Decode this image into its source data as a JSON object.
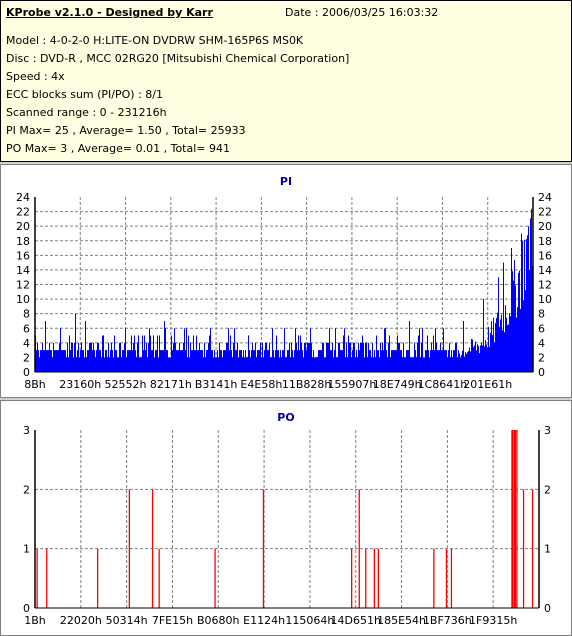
{
  "info": {
    "title": "KProbe v2.1.0 - Designed by Karr",
    "date": "Date : 2006/03/25 16:03:32",
    "model": "Model : 4-0-2-0 H:LITE-ON DVDRW SHM-165P6S MS0K",
    "disc": "Disc : DVD-R , MCC 02RG20   [Mitsubishi Chemical Corporation]",
    "speed": "Speed : 4x",
    "ecc": "ECC blocks sum (PI/PO) : 8/1",
    "range": "Scanned range : 0 - 231216h",
    "pi_stats": "PI Max= 25 , Average= 1.50 , Total= 25933",
    "po_stats": "PO Max= 3 , Average= 0.01 , Total= 941"
  },
  "chart_data": [
    {
      "type": "bar",
      "title": "PI",
      "ylim": [
        0,
        24
      ],
      "yticks": [
        0,
        2,
        4,
        6,
        8,
        10,
        12,
        14,
        16,
        18,
        20,
        22,
        24
      ],
      "xtick_labels": [
        "8Bh",
        "23160h",
        "52552h",
        "82171h",
        "B3141h",
        "E4E58h",
        "11B828h",
        "155907h",
        "18E749h",
        "1C8641h",
        "201E61h"
      ],
      "grid": true,
      "color": "#0000ff",
      "baseline_range": [
        2,
        4
      ],
      "profile": [
        [
          0,
          3
        ],
        [
          0.85,
          3
        ],
        [
          0.89,
          4
        ],
        [
          0.92,
          6
        ],
        [
          0.95,
          10
        ],
        [
          0.97,
          14
        ],
        [
          0.985,
          18
        ],
        [
          1.0,
          24
        ]
      ],
      "spikes": [
        [
          0.02,
          7
        ],
        [
          0.05,
          6
        ],
        [
          0.08,
          8
        ],
        [
          0.1,
          7
        ],
        [
          0.18,
          6
        ],
        [
          0.26,
          7
        ],
        [
          0.3,
          6
        ],
        [
          0.4,
          6
        ],
        [
          0.5,
          6
        ],
        [
          0.62,
          6
        ],
        [
          0.7,
          6
        ],
        [
          0.75,
          7
        ],
        [
          0.82,
          6
        ],
        [
          0.86,
          7
        ],
        [
          0.9,
          10
        ],
        [
          0.93,
          13
        ],
        [
          0.94,
          15
        ],
        [
          0.955,
          17
        ],
        [
          0.975,
          19
        ],
        [
          0.99,
          20
        ]
      ]
    },
    {
      "type": "bar",
      "title": "PO",
      "ylim": [
        0,
        3
      ],
      "yticks": [
        0,
        1,
        2,
        3
      ],
      "xtick_labels": [
        "1Bh",
        "22020h",
        "50314h",
        "7FE15h",
        "B0680h",
        "E1124h",
        "115064h",
        "14D651h",
        "185E54h",
        "1BF736h",
        "1F9315h"
      ],
      "grid": true,
      "color": "#ff0000",
      "bars": [
        [
          0.003,
          1
        ],
        [
          0.022,
          1
        ],
        [
          0.123,
          1
        ],
        [
          0.186,
          2
        ],
        [
          0.232,
          2
        ],
        [
          0.245,
          1
        ],
        [
          0.356,
          1
        ],
        [
          0.452,
          2
        ],
        [
          0.627,
          1
        ],
        [
          0.642,
          2
        ],
        [
          0.655,
          1
        ],
        [
          0.672,
          1
        ],
        [
          0.68,
          1
        ],
        [
          0.79,
          1
        ],
        [
          0.815,
          1
        ],
        [
          0.825,
          1
        ],
        [
          0.945,
          3
        ],
        [
          0.947,
          3
        ],
        [
          0.95,
          3
        ],
        [
          0.952,
          3
        ],
        [
          0.955,
          3
        ],
        [
          0.968,
          2
        ],
        [
          0.986,
          2
        ]
      ]
    }
  ]
}
